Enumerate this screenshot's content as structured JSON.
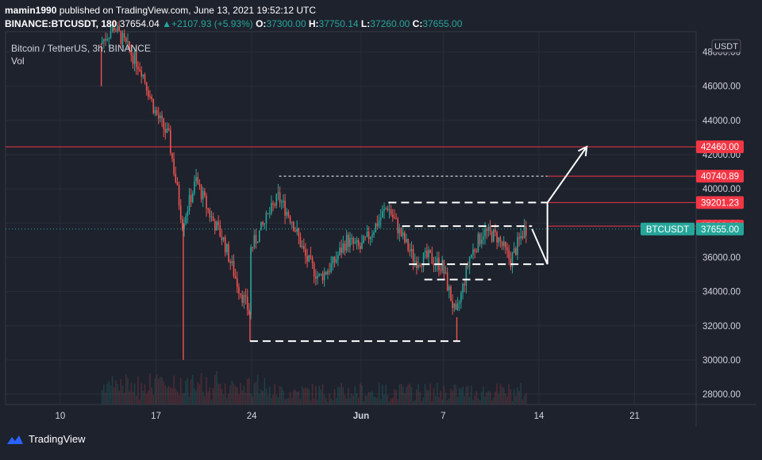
{
  "header": {
    "author": "mamin1990",
    "published_text": "published on TradingView.com, June 13, 2021 19:52:12 UTC",
    "symbol_line": "BINANCE:BTCUSDT, 180",
    "last_price": "37654.04",
    "change": "+2107.93 (+5.93%)",
    "o_label": "O:",
    "o_value": "37300.00",
    "h_label": "H:",
    "h_value": "37750.14",
    "l_label": "L:",
    "l_value": "37260.00",
    "c_label": "C:",
    "c_value": "37655.00"
  },
  "legend": {
    "instrument": "Bitcoin / TetherUS, 3h, BINANCE",
    "indicator": "Vol"
  },
  "currency_badge": "USDT",
  "footer": {
    "brand": "TradingView"
  },
  "colors": {
    "background": "#1e222d",
    "up": "#26a69a",
    "down": "#ef5350",
    "grid": "#2a2e39",
    "level_line": "#f23645",
    "annotation": "#ffffff"
  },
  "chart_data": {
    "type": "candlestick",
    "x_axis": {
      "type": "date",
      "ticks": [
        {
          "label": "10",
          "date": "2021-05-10"
        },
        {
          "label": "17",
          "date": "2021-05-17"
        },
        {
          "label": "24",
          "date": "2021-05-24"
        },
        {
          "label": "Jun",
          "date": "2021-06-01"
        },
        {
          "label": "7",
          "date": "2021-06-07"
        },
        {
          "label": "14",
          "date": "2021-06-14"
        },
        {
          "label": "21",
          "date": "2021-06-21"
        }
      ]
    },
    "y_axis": {
      "ticks": [
        28000,
        30000,
        32000,
        34000,
        36000,
        38000,
        40000,
        42000,
        44000,
        46000,
        48000
      ],
      "tick_labels": [
        "28000.00",
        "30000.00",
        "32000.00",
        "34000.00",
        "36000.00",
        "38000.00",
        "40000.00",
        "42000.00",
        "44000.00",
        "46000.00",
        "48000.00"
      ],
      "range": [
        27400,
        49000
      ]
    },
    "price_path": [
      [
        "2021-05-13",
        48500
      ],
      [
        "2021-05-14",
        49500
      ],
      [
        "2021-05-15",
        48200
      ],
      [
        "2021-05-16",
        47000
      ],
      [
        "2021-05-17",
        44500
      ],
      [
        "2021-05-18",
        43000
      ],
      [
        "2021-05-19",
        38000
      ],
      [
        "2021-05-20",
        40500
      ],
      [
        "2021-05-21",
        38500
      ],
      [
        "2021-05-22",
        37000
      ],
      [
        "2021-05-23",
        34500
      ],
      [
        "2021-05-23T21",
        32800
      ],
      [
        "2021-05-24",
        36500
      ],
      [
        "2021-05-25",
        38000
      ],
      [
        "2021-05-26",
        39500
      ],
      [
        "2021-05-27",
        38200
      ],
      [
        "2021-05-28",
        36000
      ],
      [
        "2021-05-29",
        34800
      ],
      [
        "2021-05-30",
        35600
      ],
      [
        "2021-05-31",
        37000
      ],
      [
        "2021-06-01",
        36500
      ],
      [
        "2021-06-02",
        37700
      ],
      [
        "2021-06-03",
        39000
      ],
      [
        "2021-06-04",
        37300
      ],
      [
        "2021-06-05",
        35800
      ],
      [
        "2021-06-06",
        36000
      ],
      [
        "2021-06-07",
        35500
      ],
      [
        "2021-06-08",
        32500
      ],
      [
        "2021-06-09",
        36000
      ],
      [
        "2021-06-10",
        37500
      ],
      [
        "2021-06-11",
        37200
      ],
      [
        "2021-06-12",
        35800
      ],
      [
        "2021-06-13",
        37655
      ]
    ],
    "wicks": [
      {
        "date": "2021-05-13",
        "low": 46000
      },
      {
        "date": "2021-05-19",
        "low": 30000
      },
      {
        "date": "2021-05-23T21",
        "low": 31100
      },
      {
        "date": "2021-06-08",
        "low": 31100
      }
    ],
    "current_price": {
      "label": "BTCUSDT",
      "value": 37655.0,
      "value_label": "37655.00"
    },
    "levels": [
      {
        "value": 42460.0,
        "label": "42460.00",
        "from": "2021-05-06"
      },
      {
        "value": 40740.89,
        "label": "40740.89",
        "from": "2021-06-14T15"
      },
      {
        "value": 39201.23,
        "label": "39201.23",
        "from": "2021-06-14T15"
      },
      {
        "value": 37823.63,
        "label": "37823.63",
        "from": "2021-06-14T15"
      }
    ],
    "annotations": {
      "dashed_levels": [
        {
          "from": "2021-05-23T21",
          "to": "2021-06-08T06",
          "value": 31100,
          "style": "long-dash"
        },
        {
          "from": "2021-05-26",
          "to": "2021-06-14T15",
          "value": 40740.89,
          "style": "short-dash"
        },
        {
          "from": "2021-06-03",
          "to": "2021-06-14T15",
          "value": 39201.23,
          "style": "long-dash"
        },
        {
          "from": "2021-06-04",
          "to": "2021-06-13T12",
          "value": 37823.63,
          "style": "long-dash"
        },
        {
          "from": "2021-06-04T12",
          "to": "2021-06-14T15",
          "value": 35600,
          "style": "long-dash"
        },
        {
          "from": "2021-06-05T15",
          "to": "2021-06-10T12",
          "value": 34700,
          "style": "long-dash"
        }
      ],
      "projection": [
        [
          "2021-06-13T12",
          37655
        ],
        [
          "2021-06-14T15",
          35600
        ],
        [
          "2021-06-14T15",
          39201.23
        ],
        [
          "2021-06-17T12",
          42460
        ]
      ]
    }
  }
}
